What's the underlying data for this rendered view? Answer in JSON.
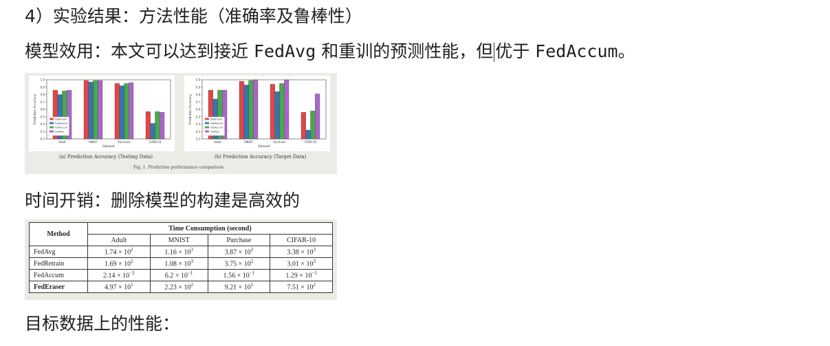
{
  "headings": {
    "l1": "4）实验结果：方法性能（准确率及鲁棒性）",
    "l2_a": "模型效用：本文可以达到接近 ",
    "l2_b": "FedAvg",
    "l2_c": " 和重训的预测性能，但",
    "l2_d": "优于 ",
    "l2_e": "FedAccum",
    "l2_f": "。",
    "l3": "时间开销：删除模型的构建是高效的",
    "l4": "目标数据上的性能："
  },
  "figure": {
    "caption": "Fig. 1.   Prediction performance comparison.",
    "subcaptions": [
      "(a) Prediction Accuracy (Testing Data)",
      "(b) Prediction Accuracy (Target Data)"
    ]
  },
  "chart_data": [
    {
      "type": "bar",
      "title": "",
      "xlabel": "Dataset",
      "ylabel": "Prediction Accuracy",
      "ylim": [
        0.2,
        1.0
      ],
      "yticks": [
        "0.2",
        "0.3",
        "0.4",
        "0.5",
        "0.6",
        "0.7",
        "0.8",
        "0.9",
        "1.0"
      ],
      "categories": [
        "Adult",
        "MNIST",
        "Purchase",
        "CIFAR-10"
      ],
      "legend_position": "bottom-left",
      "series": [
        {
          "name": "FedEraser",
          "color": "#e84a4a",
          "values": [
            0.86,
            0.99,
            0.95,
            0.57
          ]
        },
        {
          "name": "FedRetrain",
          "color": "#3a78b8",
          "values": [
            0.8,
            0.97,
            0.92,
            0.41
          ]
        },
        {
          "name": "FedAccum",
          "color": "#4caf50",
          "values": [
            0.85,
            0.99,
            0.95,
            0.57
          ]
        },
        {
          "name": "FedAvg",
          "color": "#b06ad0",
          "values": [
            0.86,
            0.99,
            0.96,
            0.56
          ]
        }
      ]
    },
    {
      "type": "bar",
      "title": "",
      "xlabel": "Dataset",
      "ylabel": "Prediction Accuracy",
      "ylim": [
        0.2,
        1.0
      ],
      "yticks": [
        "0.2",
        "0.3",
        "0.4",
        "0.5",
        "0.6",
        "0.7",
        "0.8",
        "0.9",
        "1.0"
      ],
      "categories": [
        "Adult",
        "MNIST",
        "Purchase",
        "CIFAR-10"
      ],
      "legend_position": "bottom-left",
      "series": [
        {
          "name": "FedEraser",
          "color": "#e84a4a",
          "values": [
            0.86,
            0.98,
            0.94,
            0.56
          ]
        },
        {
          "name": "FedRetrain",
          "color": "#3a78b8",
          "values": [
            0.74,
            0.93,
            0.84,
            0.32
          ]
        },
        {
          "name": "FedAccum",
          "color": "#4caf50",
          "values": [
            0.86,
            0.99,
            0.95,
            0.58
          ]
        },
        {
          "name": "FedAvg",
          "color": "#b06ad0",
          "values": [
            0.86,
            1.0,
            1.0,
            0.81
          ]
        }
      ]
    }
  ],
  "table": {
    "method_header": "Method",
    "group_header": "Time Consumption (second)",
    "columns": [
      "Adult",
      "MNIST",
      "Purchase",
      "CIFAR-10"
    ],
    "rows": [
      {
        "method": "FedAvg",
        "cells": [
          [
            "1.74 × 10",
            "2"
          ],
          [
            "1.16 × 10",
            "3"
          ],
          [
            "3.87 × 10",
            "2"
          ],
          [
            "3.38 × 10",
            "3"
          ]
        ]
      },
      {
        "method": "FedRetrain",
        "cells": [
          [
            "1.69 × 10",
            "2"
          ],
          [
            "1.08 × 10",
            "3"
          ],
          [
            "3.75 × 10",
            "2"
          ],
          [
            "3.01 × 10",
            "3"
          ]
        ]
      },
      {
        "method": "FedAccum",
        "cells": [
          [
            "2.14 × 10",
            "−2"
          ],
          [
            "6.2 × 10",
            "−1"
          ],
          [
            "1.56 × 10",
            "−1"
          ],
          [
            "1.29 × 10",
            "−1"
          ]
        ]
      },
      {
        "method": "FedEraser",
        "cells": [
          [
            "4.97 × 10",
            "1"
          ],
          [
            "2.23 × 10",
            "2"
          ],
          [
            "9.21 × 10",
            "1"
          ],
          [
            "7.51 × 10",
            "2"
          ]
        ]
      }
    ]
  }
}
